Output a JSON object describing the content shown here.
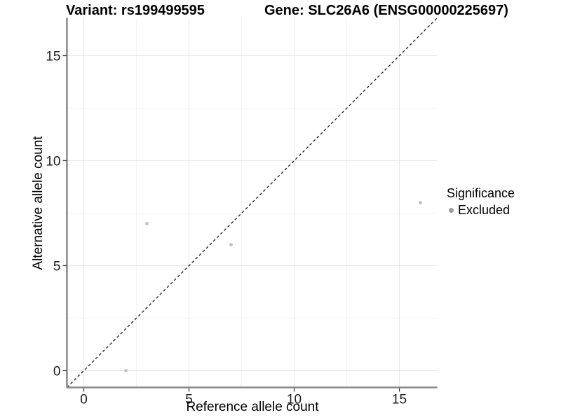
{
  "title": {
    "variant": "Variant: rs199499595",
    "gene": "Gene: SLC26A6 (ENSG00000225697)"
  },
  "legend": {
    "title": "Significance",
    "items": [
      {
        "label": "Excluded",
        "key_color": "#9c9c9c"
      }
    ]
  },
  "colors": {
    "grid_major": "#e8e8e8",
    "grid_minor": "#f4f4f4",
    "axis_line_left": "#2e2e2e",
    "axis_line_bottom": "#8a8a8a",
    "tick_mark": "#333333",
    "tick_label": "#1b1b1b",
    "point": "#c3c3c3",
    "identity_line": "#1a1a1a"
  },
  "chart_data": {
    "type": "scatter",
    "title": "Variant: rs199499595   Gene: SLC26A6 (ENSG00000225697)",
    "xlabel": "Reference allele count",
    "ylabel": "Alternative allele count",
    "xlim": [
      -0.8,
      16.8
    ],
    "ylim": [
      -0.8,
      16.8
    ],
    "x_ticks": [
      0,
      5,
      10,
      15
    ],
    "y_ticks": [
      0,
      5,
      10,
      15
    ],
    "x_minor_ticks": [
      2.5,
      7.5,
      12.5
    ],
    "y_minor_ticks": [
      2.5,
      7.5,
      12.5
    ],
    "grid": "on",
    "legend_position": "right",
    "identity_line": {
      "slope": 1,
      "intercept": 0,
      "style": "dashed"
    },
    "series": [
      {
        "name": "Excluded",
        "points": [
          {
            "x": 2,
            "y": 0
          },
          {
            "x": 3,
            "y": 7
          },
          {
            "x": 7,
            "y": 6
          },
          {
            "x": 16,
            "y": 8
          }
        ]
      }
    ]
  }
}
